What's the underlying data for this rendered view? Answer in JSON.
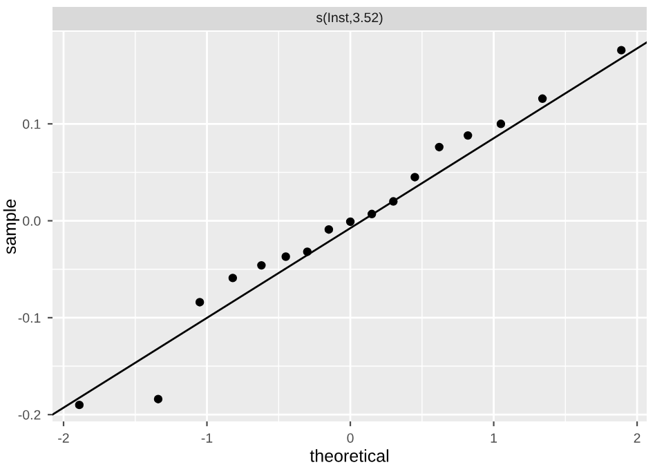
{
  "chart_data": {
    "type": "scatter",
    "title": "s(Inst,3.52)",
    "xlabel": "theoretical",
    "ylabel": "sample",
    "x": [
      -1.89,
      -1.34,
      -1.05,
      -0.82,
      -0.62,
      -0.45,
      -0.3,
      -0.15,
      0.0,
      0.15,
      0.3,
      0.45,
      0.62,
      0.82,
      1.05,
      1.34,
      1.89
    ],
    "series": [
      {
        "color": "#000000",
        "marker": "circle",
        "values": [
          -0.19,
          -0.184,
          -0.084,
          -0.059,
          -0.046,
          -0.037,
          -0.032,
          -0.009,
          -0.001,
          0.007,
          0.02,
          0.045,
          0.076,
          0.088,
          0.1,
          0.126,
          0.176
        ]
      },
      {
        "type": "line",
        "color": "#000000",
        "x": [
          -2.077,
          2.067
        ],
        "values": [
          -0.2,
          0.184
        ]
      }
    ],
    "xlim": [
      -2.077,
      2.067
    ],
    "ylim": [
      -0.207,
      0.195
    ],
    "xticks": [
      -2,
      -1,
      0,
      1,
      2
    ],
    "yticks": [
      {
        "value": -0.2,
        "label": "-0.2"
      },
      {
        "value": -0.1,
        "label": "-0.1"
      },
      {
        "value": 0,
        "label": "0.0"
      },
      {
        "value": 0.1,
        "label": "0.1"
      }
    ],
    "grid": true,
    "legend": false
  }
}
